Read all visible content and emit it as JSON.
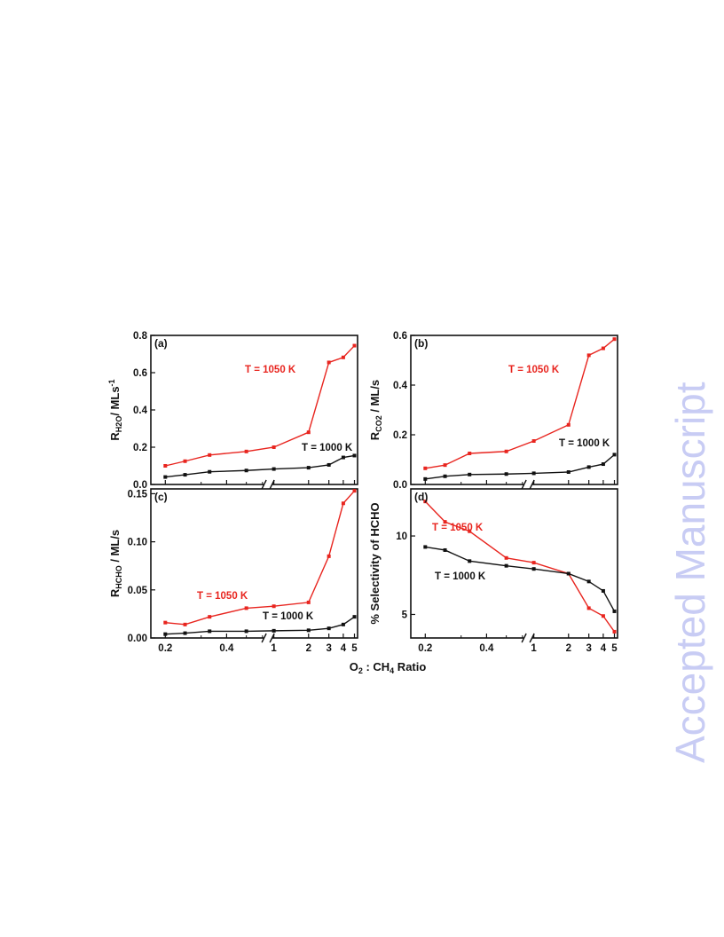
{
  "watermark": "Accepted Manuscript",
  "colors": {
    "series_1050": "#e8251f",
    "series_1000": "#111111",
    "watermark": "#c8ccf4"
  },
  "xaxis": {
    "title_prefix": "O",
    "title_sub1": "2",
    "title_mid": " : CH",
    "title_sub2": "4",
    "title_suffix": " Ratio"
  },
  "chart_data": [
    {
      "type": "line",
      "panel": "(a)",
      "ylabel": {
        "base": "R",
        "sub": "H2O",
        "suffix": "/ MLs",
        "sup": "-1"
      },
      "ylim": [
        0,
        0.8
      ],
      "yticks": [
        0.0,
        0.2,
        0.4,
        0.6,
        0.8
      ],
      "ytick_labels": [
        "0.0",
        "0.2",
        "0.4",
        "0.6",
        "0.8"
      ],
      "x_break": true,
      "xticks": [
        0.2,
        0.4,
        1,
        2,
        3,
        4,
        5
      ],
      "xtick_labels": [
        "0.2",
        "0.4",
        "1",
        "2",
        "3",
        "4",
        "5"
      ],
      "series": [
        {
          "name": "T = 1050 K",
          "x": [
            0.2,
            0.25,
            0.33,
            0.5,
            1,
            2,
            3,
            4,
            5
          ],
          "values": [
            0.1,
            0.125,
            0.158,
            0.177,
            0.2,
            0.28,
            0.655,
            0.682,
            0.745
          ]
        },
        {
          "name": "T = 1000 K",
          "x": [
            0.2,
            0.25,
            0.33,
            0.5,
            1,
            2,
            3,
            4,
            5
          ],
          "values": [
            0.04,
            0.052,
            0.068,
            0.075,
            0.083,
            0.09,
            0.105,
            0.145,
            0.155
          ]
        }
      ],
      "labels": [
        {
          "series": 0,
          "text": "T = 1050 K"
        },
        {
          "series": 1,
          "text": "T = 1000 K"
        }
      ]
    },
    {
      "type": "line",
      "panel": "(b)",
      "ylabel": {
        "base": "R",
        "sub": "CO2",
        "suffix": " / ML/s",
        "sup": ""
      },
      "ylim": [
        0,
        0.6
      ],
      "yticks": [
        0.0,
        0.2,
        0.4,
        0.6
      ],
      "ytick_labels": [
        "0.0",
        "0.2",
        "0.4",
        "0.6"
      ],
      "x_break": true,
      "xticks": [
        0.2,
        0.4,
        1,
        2,
        3,
        4,
        5
      ],
      "xtick_labels": [
        "0.2",
        "0.4",
        "1",
        "2",
        "3",
        "4",
        "5"
      ],
      "series": [
        {
          "name": "T = 1050 K",
          "x": [
            0.2,
            0.25,
            0.33,
            0.5,
            1,
            2,
            3,
            4,
            5
          ],
          "values": [
            0.065,
            0.078,
            0.125,
            0.133,
            0.175,
            0.24,
            0.52,
            0.548,
            0.585
          ]
        },
        {
          "name": "T = 1000 K",
          "x": [
            0.2,
            0.25,
            0.33,
            0.5,
            1,
            2,
            3,
            4,
            5
          ],
          "values": [
            0.022,
            0.033,
            0.04,
            0.042,
            0.045,
            0.05,
            0.07,
            0.082,
            0.12
          ]
        }
      ],
      "labels": [
        {
          "series": 0,
          "text": "T = 1050 K"
        },
        {
          "series": 1,
          "text": "T = 1000 K"
        }
      ]
    },
    {
      "type": "line",
      "panel": "(c)",
      "ylabel": {
        "base": "R",
        "sub": "HCHO",
        "suffix": " / ML/s",
        "sup": ""
      },
      "ylim": [
        0,
        0.155
      ],
      "yticks": [
        0.0,
        0.05,
        0.1,
        0.15
      ],
      "ytick_labels": [
        "0.00",
        "0.05",
        "0.10",
        "0.15"
      ],
      "x_break": true,
      "xticks": [
        0.2,
        0.4,
        1,
        2,
        3,
        4,
        5
      ],
      "xtick_labels": [
        "0.2",
        "0.4",
        "1",
        "2",
        "3",
        "4",
        "5"
      ],
      "series": [
        {
          "name": "T = 1050 K",
          "x": [
            0.2,
            0.25,
            0.33,
            0.5,
            1,
            2,
            3,
            4,
            5
          ],
          "values": [
            0.016,
            0.014,
            0.022,
            0.031,
            0.033,
            0.037,
            0.085,
            0.14,
            0.153
          ]
        },
        {
          "name": "T = 1000 K",
          "x": [
            0.2,
            0.25,
            0.33,
            0.5,
            1,
            2,
            3,
            4,
            5
          ],
          "values": [
            0.004,
            0.005,
            0.007,
            0.007,
            0.0075,
            0.008,
            0.01,
            0.014,
            0.022
          ]
        }
      ],
      "labels": [
        {
          "series": 0,
          "text": "T = 1050 K"
        },
        {
          "series": 1,
          "text": "T = 1000 K"
        }
      ]
    },
    {
      "type": "line",
      "panel": "(d)",
      "ylabel": {
        "base": "% Selectivity of HCHO",
        "sub": "",
        "suffix": "",
        "sup": ""
      },
      "ylim": [
        3.5,
        13
      ],
      "yticks": [
        5,
        10
      ],
      "ytick_labels": [
        "5",
        "10"
      ],
      "x_break": true,
      "xticks": [
        0.2,
        0.4,
        1,
        2,
        3,
        4,
        5
      ],
      "xtick_labels": [
        "0.2",
        "0.4",
        "1",
        "2",
        "3",
        "4",
        "5"
      ],
      "series": [
        {
          "name": "T = 1050 K",
          "x": [
            0.2,
            0.25,
            0.33,
            0.5,
            1,
            2,
            3,
            4,
            5
          ],
          "values": [
            12.2,
            10.9,
            10.3,
            8.6,
            8.3,
            7.6,
            5.4,
            4.9,
            3.9
          ]
        },
        {
          "name": "T = 1000 K",
          "x": [
            0.2,
            0.25,
            0.33,
            0.5,
            1,
            2,
            3,
            4,
            5
          ],
          "values": [
            9.3,
            9.1,
            8.4,
            8.1,
            7.9,
            7.6,
            7.1,
            6.5,
            5.2
          ]
        }
      ],
      "labels": [
        {
          "series": 0,
          "text": "T = 1050 K"
        },
        {
          "series": 1,
          "text": "T = 1000 K"
        }
      ]
    }
  ]
}
